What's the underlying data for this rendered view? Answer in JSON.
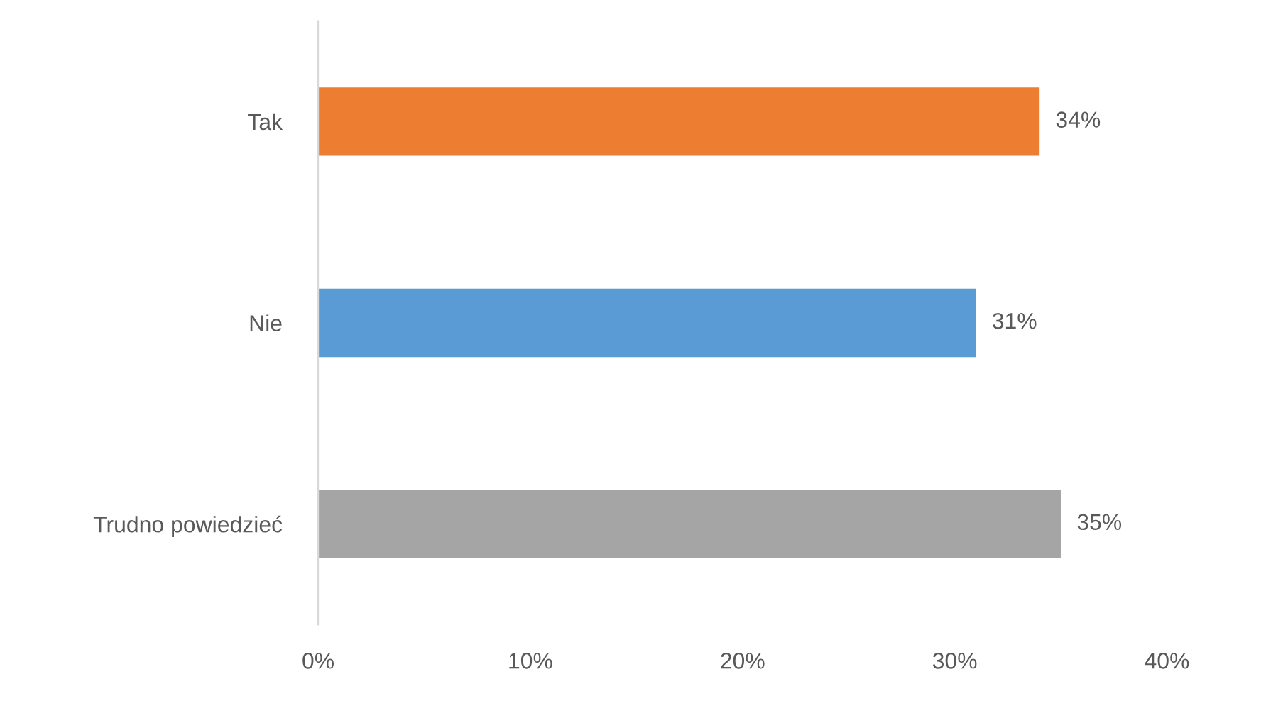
{
  "chart_data": {
    "type": "bar",
    "orientation": "horizontal",
    "categories": [
      "Tak",
      "Nie",
      "Trudno powiedzieć"
    ],
    "values": [
      34,
      31,
      35
    ],
    "colors": [
      "#ed7d31",
      "#5b9bd5",
      "#a5a5a5"
    ],
    "value_labels": [
      "34%",
      "31%",
      "35%"
    ],
    "xlim": [
      0,
      40
    ],
    "xticks": [
      {
        "value": 0,
        "label": "0%"
      },
      {
        "value": 10,
        "label": "10%"
      },
      {
        "value": 20,
        "label": "20%"
      },
      {
        "value": 30,
        "label": "30%"
      },
      {
        "value": 40,
        "label": "40%"
      }
    ],
    "grid": false,
    "legend": false
  }
}
